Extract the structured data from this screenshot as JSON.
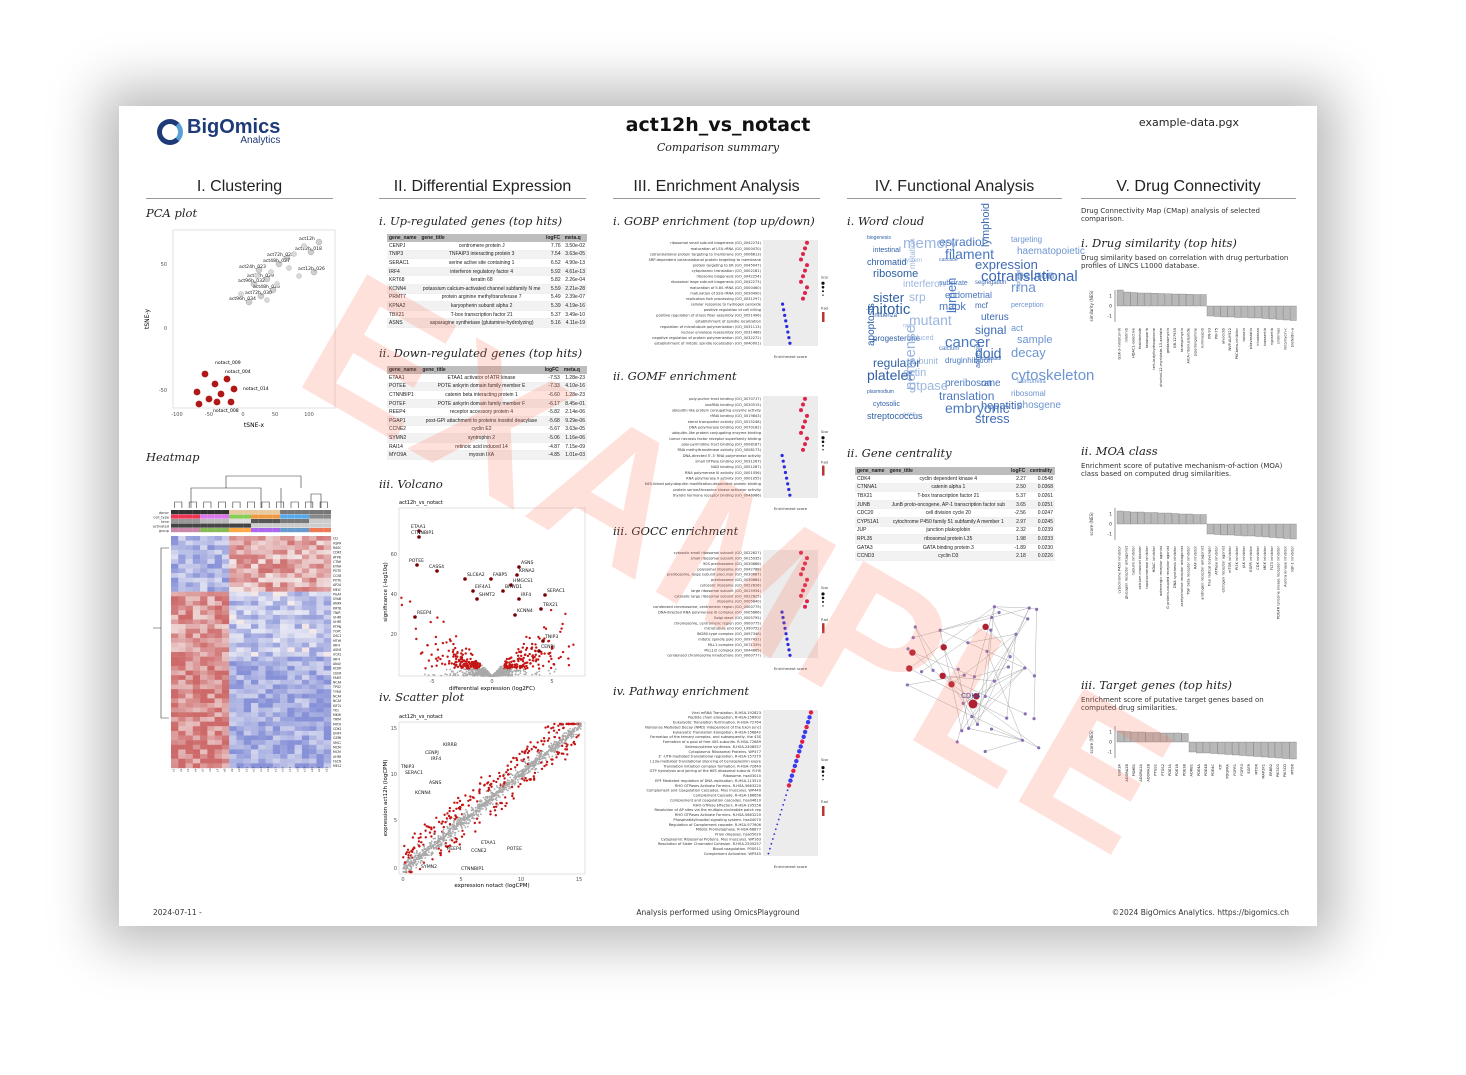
{
  "header": {
    "brand": "BigOmics",
    "brand_sub": "Analytics",
    "title": "act12h_vs_notact",
    "subtitle": "Comparison summary",
    "file": "example-data.pgx"
  },
  "columns": {
    "c1": "I. Clustering",
    "c2": "II. Differential Expression",
    "c3": "III. Enrichment Analysis",
    "c4": "IV. Functional Analysis",
    "c5": "V. Drug Connectivity"
  },
  "clustering": {
    "pca_title": "PCA plot",
    "heatmap_title": "Heatmap",
    "pca_xlabel": "tSNE-x",
    "pca_ylabel": "tSNE-y",
    "pca_labels": [
      "act12h",
      "act12h_018",
      "act72h_028",
      "act48h_027",
      "act24h_023",
      "act12h_026",
      "act72h_029",
      "act96h_032",
      "act48h_026",
      "act72h_030",
      "act96h_034",
      "notact_009",
      "notact_004",
      "notact_014",
      "notact_008"
    ],
    "heatmap_tracks": [
      "donor",
      "cell_type",
      "time",
      "activated",
      "group"
    ],
    "heatmap_genes": [
      "CD",
      "HSPA5",
      "RASGRP2",
      "CDKN1B",
      "ATP8B2",
      "CTNNBIP1",
      "ETAA1",
      "POTEE",
      "CCNE2",
      "POTEF",
      "AP2A",
      "MEX3D",
      "PGAP1",
      "SYAB2",
      "ANKRD22",
      "KRT80",
      "TNIP3",
      "UHRF1BP",
      "UHRF1BP1",
      "PTPN6",
      "TOPORS",
      "DSC1",
      "MTHFD2",
      "IRF4",
      "ASN5",
      "UCK2",
      "IRF4",
      "ANLN",
      "KCNN4",
      "CENPU",
      "FAM3",
      "NCAPH",
      "TPX2",
      "TYMS",
      "NCAPG",
      "NCAPG2",
      "KIF2C",
      "TK1",
      "MKI67",
      "TRIM2",
      "MYOF",
      "CDK1",
      "DHFR",
      "GZMB",
      "SMC2",
      "MCM4",
      "MCM7",
      "UHRF1",
      "FSCN1",
      "MEL2"
    ]
  },
  "diffexp": {
    "up_title": "i. Up-regulated genes (top hits)",
    "table_headers": [
      "gene_name",
      "gene_title",
      "logFC",
      "meta.q"
    ],
    "up_rows": [
      [
        "CENPJ",
        "centromere protein J",
        "7.76",
        "3.50e-02"
      ],
      [
        "TNIP3",
        "TNFAIP3 interacting protein 3",
        "7.54",
        "3.63e-05"
      ],
      [
        "SERAC1",
        "serine active site containing 1",
        "6.52",
        "4.90e-13"
      ],
      [
        "IRF4",
        "interferon regulatory factor 4",
        "5.92",
        "4.61e-13"
      ],
      [
        "KRT68",
        "keratin 68",
        "5.82",
        "2.26e-04"
      ],
      [
        "KCNN4",
        "potassium calcium-activated channel subfamily N me",
        "5.59",
        "2.21e-28"
      ],
      [
        "PRMT7",
        "protein arginine methyltransferase 7",
        "5.49",
        "2.39e-07"
      ],
      [
        "KPNA2",
        "karyopherin subunit alpha 2",
        "5.39",
        "4.19e-16"
      ],
      [
        "TBX21",
        "T-box transcription factor 21",
        "5.37",
        "3.49e-10"
      ],
      [
        "ASNS",
        "asparagine synthetase (glutamine-hydrolyzing)",
        "5.16",
        "4.11e-19"
      ]
    ],
    "down_title": "ii. Down-regulated genes (top hits)",
    "down_rows": [
      [
        "ETAA1",
        "ETAA1 activator of ATR kinase",
        "-7.53",
        "1.28e-23"
      ],
      [
        "POTEE",
        "POTE ankyrin domain family member E",
        "-7.33",
        "4.10e-16"
      ],
      [
        "CTNNBIP1",
        "catenin beta interacting protein 1",
        "-6.60",
        "1.28e-23"
      ],
      [
        "POTEF",
        "POTE ankyrin domain family member F",
        "-6.17",
        "8.45e-01"
      ],
      [
        "REEP4",
        "receptor accessory protein 4",
        "-5.82",
        "2.14e-06"
      ],
      [
        "PGAP1",
        "post-GPI attachment to proteins inositol deacylase",
        "-5.68",
        "9.29e-06"
      ],
      [
        "CCNE2",
        "cyclin E2",
        "-5.67",
        "3.63e-05"
      ],
      [
        "SYMN2",
        "syntrophin 2",
        "-5.06",
        "1.16e-06"
      ],
      [
        "RAI14",
        "retinoic acid induced 14",
        "-4.87",
        "7.15e-09"
      ],
      [
        "MYO9A",
        "myosin IXA",
        "-4.85",
        "1.01e-03"
      ]
    ],
    "volcano_title": "iii. Volcano",
    "volcano_subtitle": "act12h_vs_notact",
    "volcano_xlabel": "differential expression (log2FC)",
    "volcano_ylabel": "significance (-log10q)",
    "volcano_labels": [
      "ETAA1",
      "CTNNBIP1",
      "POTEE",
      "CASS4",
      "SLC6A2",
      "FABP5",
      "ASNS",
      "KRNA2",
      "HMGCS1",
      "EIF4A1",
      "BRWD1",
      "SHMT2",
      "IRF4",
      "SERAC1",
      "TBX21",
      "KCNN4",
      "REEP4",
      "TNIP3",
      "CENPJ"
    ],
    "scatter_title": "iv. Scatter plot",
    "scatter_subtitle": "act12h_vs_notact",
    "scatter_xlabel": "expression notact (logCPM)",
    "scatter_ylabel": "expression act12h (logCPM)",
    "scatter_labels": [
      "KIRRB",
      "CENPJ",
      "IRF4",
      "TNIP3",
      "SERAC1",
      "ASNS",
      "KCNN4",
      "ETAA1",
      "CCNE2",
      "POTEE",
      "REEP4",
      "CTNNBIP1",
      "SYMN2"
    ]
  },
  "enrichment": {
    "gobp_title": "i. GOBP enrichment (top up/down)",
    "gomf_title": "ii. GOMF enrichment",
    "gocc_title": "iii. GOCC enrichment",
    "pathway_title": "iv. Pathway enrichment",
    "xlabel": "Enrichment score",
    "gobp_terms": [
      "ribosomal small subunit biogenesis (GO_0042274)",
      "maturation of LSU-rRNA (GO_0000470)",
      "cotranslational protein targeting to membrane (GO_0006613)",
      "SRP-dependent cotranslational protein targeting to membrane",
      "protein targeting to ER (GO_0045047)",
      "cytoplasmic translation (GO_0002181)",
      "ribosome biogenesis (GO_0042254)",
      "ribosomal large subunit biogenesis (GO_0042273)",
      "maturation of 5.8S rRNA (GO_0000460)",
      "maturation of SSU-rRNA (GO_0030490)",
      "replication fork processing (GO_0031297)",
      "cellular response to hydrogen peroxide",
      "positive regulation of cell killing",
      "positive regulation of stress fiber assembly (GO_0051496)",
      "establishment of spindle localization",
      "regulation of microtubule polymerization (GO_0031113)",
      "nuclear envelope reassembly (GO_0031468)",
      "negative regulation of protein polymerization (GO_0032272)",
      "establishment of mitotic spindle localization (GO_0040001)"
    ],
    "gomf_terms": [
      "poly-purine tract binding (GO_0070717)",
      "snoRNA binding (GO_0030515)",
      "ubiquitin-like protein conjugating enzyme activity",
      "rRNA binding (GO_0019843)",
      "sterol transporter activity (GO_0015248)",
      "DNA polymerase binding (GO_0070182)",
      "ubiquitin-like protein conjugating enzyme binding",
      "tumor necrosis factor receptor superfamily binding",
      "poly-pyrimidine tract binding (GO_0008187)",
      "RNA methyltransferase activity (GO_0008173)",
      "DNA-directed 5'-3' RNA polymerase activity",
      "small GTPase binding (GO_0031267)",
      "NAD binding (GO_0051287)",
      "RNA polymerase III activity (GO_0001056)",
      "RNA polymerase II activity (GO_0001055)",
      "K63-linked polyubiquitin modification-dependent protein binding",
      "protein serine/threonine kinase activator activity",
      "thyroid hormone receptor binding (GO_0046966)"
    ],
    "gocc_terms": [
      "cytosolic small ribosomal subunit (GO_0022627)",
      "small ribosomal subunit (GO_0015935)",
      "90S preribosome (GO_0030686)",
      "polysomal ribosome (GO_0042788)",
      "preribosome, large subunit precursor (GO_0030687)",
      "preribosome (GO_0030684)",
      "cytosolic ribosome (GO_0022626)",
      "large ribosomal subunit (GO_0015934)",
      "cytosolic large ribosomal subunit (GO_0022625)",
      "ribosome (GO_0005840)",
      "condensed chromosome, centromeric region (GO_0000779)",
      "DNA-directed RNA polymerase III complex (GO_0005666)",
      "Golgi stack (GO_0005795)",
      "chromosome, centromeric region (GO_0000775)",
      "microtubule end (GO_1990752)",
      "INO80-type complex (GO_0097346)",
      "mitotic spindle pole (GO_0097431)",
      "MLL1 complex (GO_0071339)",
      "MLL1/2 complex (GO_0044665)",
      "condensed chromosome kinetochore (GO_0000777)"
    ],
    "pathway_terms": [
      "Viral mRNA Translation. R-HSA-192823",
      "Peptide chain elongation. R-HSA-156902",
      "Eukaryotic Translation Termination. R-HSA-72764",
      "Nonsense Mediated Decay (NMD) independent of the Exon Junct",
      "Eukaryotic Translation Elongation. R-HSA-156842",
      "Formation of the ternary complex, and subsequently, the 43S",
      "Formation of a pool of free 40S subunits. R-HSA-72689",
      "Selenocysteine synthesis. R-HSA-2408557",
      "Cytoplasmic Ribosomal Proteins. WP477",
      "3' -UTR-mediated translational regulation. R-HSA-157279",
      "L13a-mediated translational silencing of Ceruloplasmin expre",
      "Translation initiation complex formation. R-HSA-72649",
      "GTP hydrolysis and joining of the 60S ribosomal subunit. R-HS",
      "Ribosome. hsa03010",
      "EPF Mediated regulation of DNA replication. R-HSA-113510",
      "RHO GTPases Activate Formins. R-HSA-5663220",
      "Complement and Coagulation Cascades. Mus musculus. WP449",
      "Complement Cascade. R-HSA-166658",
      "Complement and coagulation cascades. hsa04610",
      "RHO GTPase Effectors. R-HSA-195258",
      "Resolution of AP sites via the multiple-nucleotide patch rep",
      "RHO GTPases Activate Formins. R-HSA-5663220",
      "Phosphatidylinositol signaling system. hsa04070",
      "Regulation of Complement cascade. R-HSA-977606",
      "Mitotic Prometaphase. R-HSA-68877",
      "Prion diseases. hsa05020",
      "Cytoplasmic Ribosomal Proteins. Mus musculus. WP163",
      "Resolution of Sister Chromatid Cohesion. R-HSA-2500257",
      "Blood coagulation. P00011",
      "Complement Activation. WP545"
    ],
    "legend_score": "Score",
    "legend_padj": "P.adjust"
  },
  "functional": {
    "wordcloud_title": "i. Word cloud",
    "centrality_title": "ii. Gene centrality",
    "words": [
      "biogenesis",
      "estradiol",
      "targeting",
      "memory",
      "lymphoid",
      "intestinal",
      "filament",
      "haematopoietic",
      "system",
      "expression",
      "chromatid",
      "cascade",
      "neuron",
      "mutation",
      "cotranslational",
      "ribosome",
      "substrate",
      "rrna",
      "interferon",
      "segregation",
      "sister",
      "endometrial",
      "bisphenol",
      "srp",
      "mcf",
      "mitotic",
      "mapk",
      "perception",
      "mutant",
      "uterus",
      "influenza",
      "lumen",
      "act",
      "naive",
      "signal",
      "progesterone",
      "cancer",
      "sample",
      "induced",
      "doid",
      "apoptosis",
      "calcium",
      "decay",
      "subunit",
      "chabaudi",
      "regulator",
      "druginhibition",
      "cytoskeleton",
      "actin",
      "adhesion",
      "platelet",
      "preribosome",
      "salmonella",
      "gtpase",
      "rat",
      "plasmodium",
      "translation",
      "ribosomal",
      "nonsense",
      "hepatitis",
      "cytosolic",
      "embryonic",
      "phosgene",
      "exon",
      "stress",
      "streptococcus"
    ],
    "table_headers": [
      "gene_name",
      "gene_title",
      "logFC",
      "centrality"
    ],
    "centrality_rows": [
      [
        "CDK4",
        "cyclin dependent kinase 4",
        "2.27",
        "0.0548"
      ],
      [
        "CTNNA1",
        "catenin alpha 1",
        "2.50",
        "0.0368"
      ],
      [
        "TBX21",
        "T-box transcription factor 21",
        "5.37",
        "0.0261"
      ],
      [
        "JUNB",
        "JunB proto-oncogene, AP-1 transcription factor sub",
        "3.65",
        "0.0251"
      ],
      [
        "CDC20",
        "cell division cycle 20",
        "-2.56",
        "0.0247"
      ],
      [
        "CYP51A1",
        "cytochrome P450 family 51 subfamily A member 1",
        "2.97",
        "0.0245"
      ],
      [
        "JUP",
        "junction plakoglobin",
        "2.32",
        "0.0239"
      ],
      [
        "RPL35",
        "ribosomal protein L35",
        "1.98",
        "0.0233"
      ],
      [
        "GATA3",
        "GATA binding protein 3",
        "-1.89",
        "0.0230"
      ],
      [
        "CCND3",
        "cyclin D3",
        "2.18",
        "0.0226"
      ]
    ],
    "network_center": "CDK4"
  },
  "drug": {
    "intro": "Drug Connectivity Map (CMap) analysis of selected comparison.",
    "sim_title": "i. Drug similarity (top hits)",
    "sim_desc": "Drug similarity based on correlation with drug perturbation profiles of LINCS L1000 database.",
    "sim_ylabel": "similarity (NES)",
    "sim_values": [
      1.6,
      1.4,
      1.35,
      1.3,
      1.3,
      1.28,
      1.25,
      1.22,
      1.2,
      1.2,
      1.18,
      1.15,
      1.15,
      -1.0,
      -1.05,
      -1.1,
      -1.1,
      -1.15,
      -1.15,
      -1.2,
      -1.2,
      -1.25,
      -1.3,
      -1.35,
      -1.4,
      -1.45
    ],
    "sim_labels": [
      "GSK-3-inhibitor-IX",
      "nilotinib",
      "HDAC1-selective",
      "thalidomide",
      "talazoparib",
      "tert-butylhydroquinone",
      "phorbol-12-myristate-13-acetate",
      "geldanamycin",
      "GR-127935",
      "tanespimycin",
      "AICA-ribonucleotide",
      "piperlongumine",
      "luminespib",
      "KN-93",
      "PIK-75",
      "alvocidib",
      "NVP-AUY922",
      "PKCbeta-inhibitor",
      "tubacin",
      "pitavastatin",
      "irinotecan",
      "tozasertib",
      "rigosertib",
      "sirolimus",
      "mitomycin-c",
      "brefeldin-a"
    ],
    "moa_title": "ii. MOA class",
    "moa_desc": "Enrichment score of putative mechanism-of-action (MOA) class based on computed drug similarities.",
    "moa_ylabel": "score (NES)",
    "moa_values": [
      1.3,
      1.25,
      1.2,
      1.2,
      1.15,
      1.15,
      1.1,
      1.1,
      1.05,
      1.0,
      1.0,
      0.95,
      0.95,
      -1.0,
      -1.05,
      -1.1,
      -1.1,
      -1.15,
      -1.2,
      -1.2,
      -1.25,
      -1.3,
      -1.35,
      -1.4,
      -1.45,
      -1.5
    ],
    "moa_labels": [
      "cytochrome P450 inhibitor",
      "glucagon receptor antagonist",
      "tubulin inhibitor",
      "calcium channel blocker",
      "topoisomerase inhibitor",
      "HDAC inhibitor",
      "adrenergic receptor agonist",
      "G protein-coupled receptor agonist",
      "DNA synthesis inhibitor",
      "acetylcholine receptor antagonist",
      "TGF beta receptor inhibitor",
      "RAF inhibitor",
      "androgen receptor antagonist",
      "free radical scavenger",
      "ATPase inhibitor",
      "estrogen receptor agonist",
      "mTOR inhibitor",
      "PI3K inhibitor",
      "JAK inhibitor",
      "EGFR inhibitor",
      "CDK inhibitor",
      "MEK inhibitor",
      "FLT3 inhibitor",
      "PDGFR tyrosine kinase receptor inhibitor",
      "Aurora kinase inhibitor",
      "IGF-1 inhibitor"
    ],
    "target_title": "iii. Target genes (top hits)",
    "target_desc": "Enrichment score of putative target genes based on computed drug similarities.",
    "target_ylabel": "score (NES)",
    "target_values": [
      1.1,
      1.05,
      1.0,
      1.0,
      0.95,
      0.95,
      0.9,
      0.9,
      0.9,
      0.85,
      -1.0,
      -1.1,
      -1.1,
      -1.15,
      -1.2,
      -1.25,
      -1.3,
      -1.35,
      -1.4,
      -1.45,
      -1.5,
      -1.55,
      -1.6,
      -1.65,
      -1.7
    ],
    "target_labels": [
      "GSK3A",
      "ADORA2B",
      "PSMB1",
      "ADORA2A",
      "ADORA2B",
      "PTGS1",
      "PTGS2",
      "PDE3A",
      "PDE1B",
      "PDE3B",
      "ADRB1",
      "PDE4A",
      "PDE4B",
      "PDE4C",
      "KIT",
      "PDGFRA",
      "FGFR1",
      "FGFR3",
      "EGFR",
      "MTOR",
      "MAP2K1",
      "ERBB2",
      "PIK3CG",
      "PIK3CD",
      "MTOR"
    ]
  },
  "footer": {
    "date": "2024-07-11 -",
    "center": "Analysis performed using OmicsPlayground",
    "right": "©2024 BigOmics Analytics. https://bigomics.ch"
  },
  "watermark": "EXAMPLE"
}
